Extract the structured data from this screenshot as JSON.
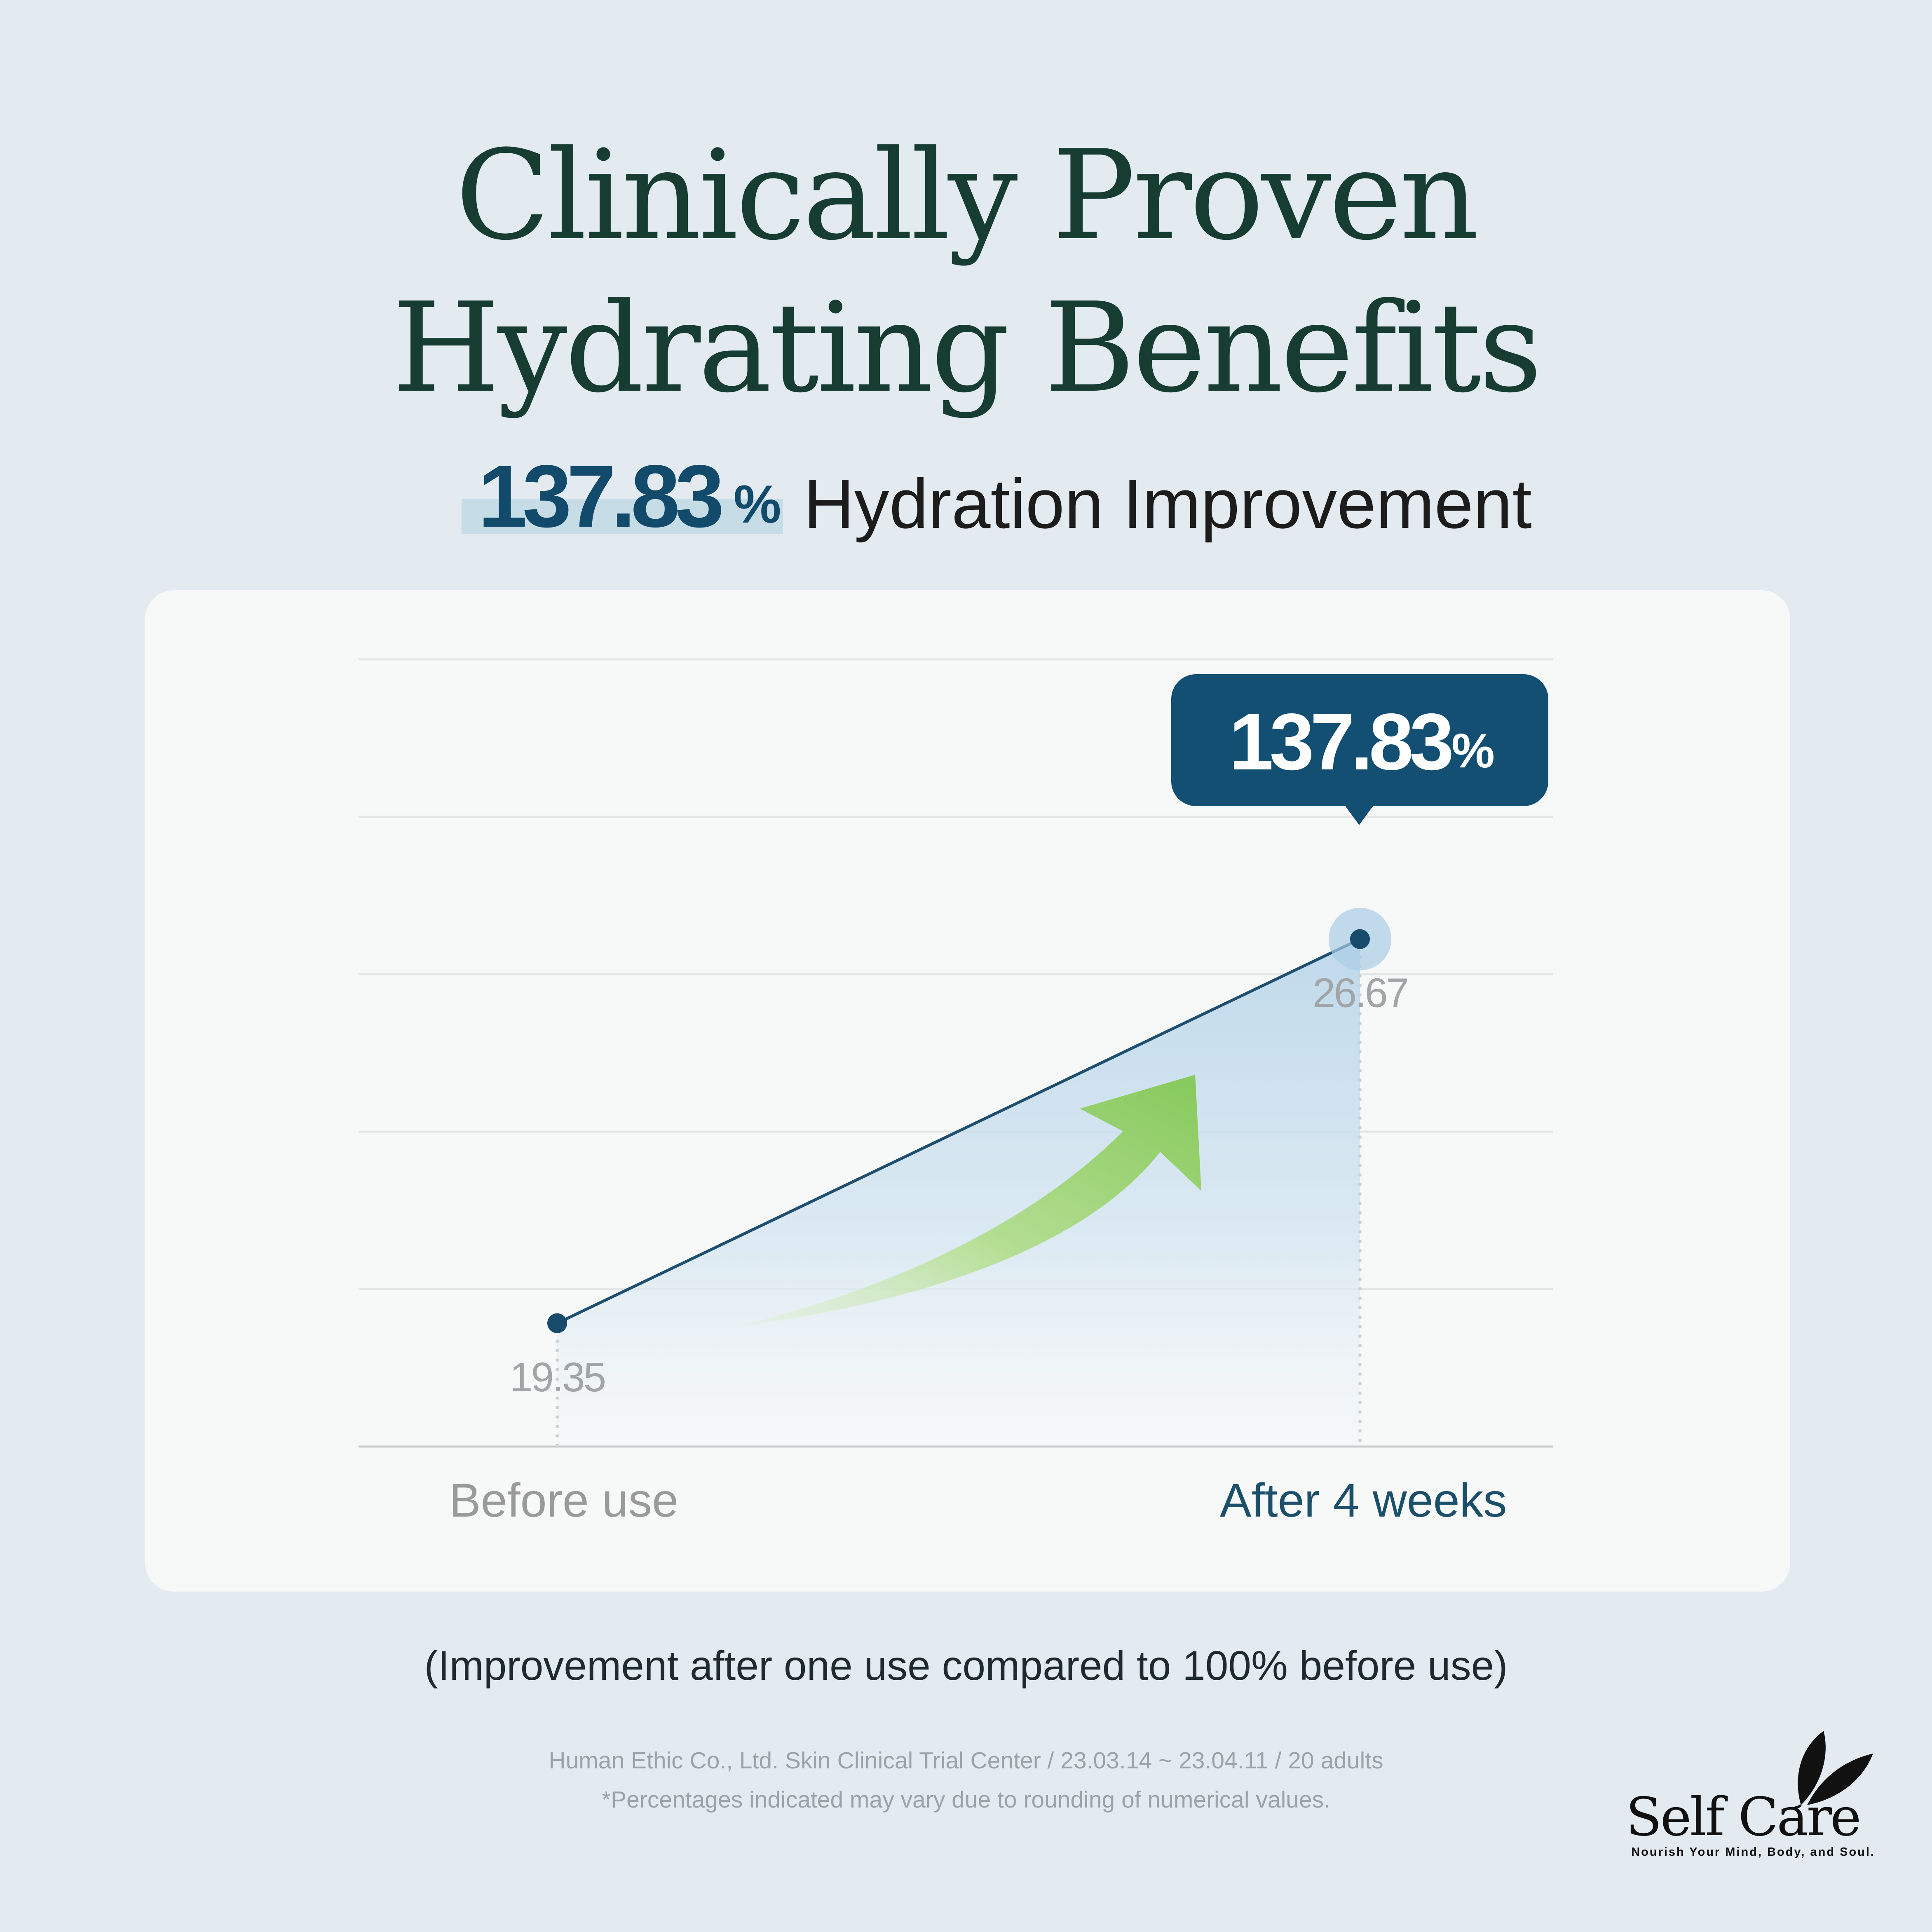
{
  "header": {
    "title_line1": "Clinically Proven",
    "title_line2": "Hydrating Benefits",
    "highlight_value": "137.83",
    "highlight_unit": "%",
    "highlight_text": "Hydration Improvement"
  },
  "callout": {
    "value": "137.83",
    "unit": "%"
  },
  "chart_data": {
    "type": "line",
    "categories": [
      "Before use",
      "After 4 weeks"
    ],
    "series": [
      {
        "values": [
          19.35,
          26.67
        ]
      }
    ],
    "data_labels": [
      "19.35",
      "26.67"
    ],
    "ylim": [
      17,
      32
    ],
    "grid": true,
    "colors": {
      "line": "#1f4f70",
      "fill": "#c3dcec",
      "arrow": "#8ccb62",
      "callout": "#134f73"
    }
  },
  "footer": {
    "note": "(Improvement after one use compared to 100% before use)",
    "source_line1": "Human Ethic Co., Ltd. Skin Clinical Trial Center / 23.03.14 ~ 23.04.11 / 20 adults",
    "source_line2": "*Percentages indicated may vary due to rounding of numerical values."
  },
  "logo": {
    "name": "Self Care",
    "tagline": "Nourish Your Mind, Body, and Soul."
  },
  "colors": {
    "background": "#e3ebf1",
    "title": "#173d32",
    "accent": "#114a6b"
  }
}
